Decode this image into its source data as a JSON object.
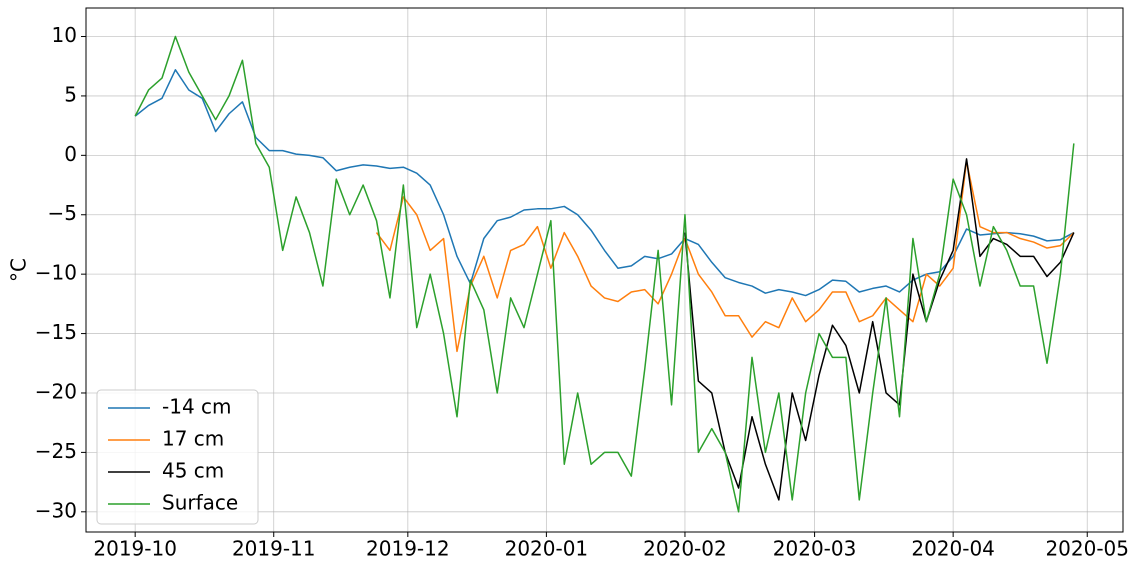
{
  "chart_data": {
    "type": "line",
    "ylabel": "°C",
    "x": [
      "2019-10-01",
      "2019-10-04",
      "2019-10-07",
      "2019-10-10",
      "2019-10-13",
      "2019-10-16",
      "2019-10-19",
      "2019-10-22",
      "2019-10-25",
      "2019-10-28",
      "2019-10-31",
      "2019-11-03",
      "2019-11-06",
      "2019-11-09",
      "2019-11-12",
      "2019-11-15",
      "2019-11-18",
      "2019-11-21",
      "2019-11-24",
      "2019-11-27",
      "2019-11-30",
      "2019-12-03",
      "2019-12-06",
      "2019-12-09",
      "2019-12-12",
      "2019-12-15",
      "2019-12-18",
      "2019-12-21",
      "2019-12-24",
      "2019-12-27",
      "2019-12-30",
      "2020-01-02",
      "2020-01-05",
      "2020-01-08",
      "2020-01-11",
      "2020-01-14",
      "2020-01-17",
      "2020-01-20",
      "2020-01-23",
      "2020-01-26",
      "2020-01-29",
      "2020-02-01",
      "2020-02-04",
      "2020-02-07",
      "2020-02-10",
      "2020-02-13",
      "2020-02-16",
      "2020-02-19",
      "2020-02-22",
      "2020-02-25",
      "2020-02-28",
      "2020-03-02",
      "2020-03-05",
      "2020-03-08",
      "2020-03-11",
      "2020-03-14",
      "2020-03-17",
      "2020-03-20",
      "2020-03-23",
      "2020-03-26",
      "2020-03-29",
      "2020-04-01",
      "2020-04-04",
      "2020-04-07",
      "2020-04-10",
      "2020-04-13",
      "2020-04-16",
      "2020-04-19",
      "2020-04-22",
      "2020-04-25",
      "2020-04-28"
    ],
    "series": [
      {
        "name": "-14 cm",
        "color": "#1f77b4",
        "values": [
          3.3,
          4.2,
          4.8,
          7.2,
          5.5,
          4.8,
          2.0,
          3.5,
          4.5,
          1.5,
          0.4,
          0.4,
          0.1,
          0,
          -0.2,
          -1.3,
          -1.0,
          -0.8,
          -0.9,
          -1.1,
          -1.0,
          -1.5,
          -2.5,
          -5,
          -8.5,
          -10.8,
          -7,
          -5.5,
          -5.2,
          -4.6,
          -4.5,
          -4.5,
          -4.3,
          -5,
          -6.3,
          -8,
          -9.5,
          -9.3,
          -8.5,
          -8.7,
          -8.3,
          -7,
          -7.5,
          -9,
          -10.3,
          -10.7,
          -11,
          -11.6,
          -11.3,
          -11.5,
          -11.8,
          -11.3,
          -10.5,
          -10.6,
          -11.5,
          -11.2,
          -11,
          -11.5,
          -10.5,
          -10,
          -9.8,
          -8.5,
          -6.2,
          -6.7,
          -6.6,
          -6.5,
          -6.6,
          -6.8,
          -7.2,
          -7.1,
          -6.5
        ]
      },
      {
        "name": "17 cm",
        "color": "#ff7f0e",
        "values": [
          null,
          null,
          null,
          null,
          null,
          null,
          null,
          null,
          null,
          null,
          null,
          null,
          null,
          null,
          null,
          null,
          null,
          null,
          -6.5,
          -8,
          -3.5,
          -5,
          -8,
          -7,
          -16.5,
          -11,
          -8.5,
          -12,
          -8,
          -7.5,
          -6,
          -9.5,
          -6.5,
          -8.5,
          -11,
          -12,
          -12.3,
          -11.5,
          -11.3,
          -12.5,
          -10,
          -7,
          -10,
          -11.5,
          -13.5,
          -13.5,
          -15.3,
          -14,
          -14.5,
          -12,
          -14,
          -13,
          -11.5,
          -11.5,
          -14,
          -13.5,
          -12,
          -13,
          -14,
          -10,
          -11,
          -9.5,
          -0.5,
          -6,
          -6.5,
          -6.5,
          -7,
          -7.3,
          -7.8,
          -7.6,
          -6.5
        ]
      },
      {
        "name": "45 cm",
        "color": "#000000",
        "values": [
          null,
          null,
          null,
          null,
          null,
          null,
          null,
          null,
          null,
          null,
          null,
          null,
          null,
          null,
          null,
          null,
          null,
          null,
          null,
          null,
          null,
          null,
          null,
          null,
          null,
          null,
          null,
          null,
          null,
          null,
          null,
          null,
          null,
          null,
          null,
          null,
          null,
          null,
          null,
          null,
          null,
          -6.5,
          -19,
          -20,
          -25,
          -28,
          -22,
          -26,
          -29,
          -20,
          -24,
          -18.5,
          -14.3,
          -16,
          -20,
          -14,
          -20,
          -21,
          -10,
          -14,
          -10.5,
          -8,
          -0.3,
          -8.5,
          -7,
          -7.5,
          -8.5,
          -8.5,
          -10.2,
          -9,
          -6.5
        ]
      },
      {
        "name": "Surface",
        "color": "#2ca02c",
        "values": [
          3.3,
          5.5,
          6.5,
          10,
          7,
          5,
          3,
          5,
          8,
          1,
          -1,
          -8,
          -3.5,
          -6.5,
          -11,
          -2,
          -5,
          -2.5,
          -5.5,
          -12,
          -2.5,
          -14.5,
          -10,
          -15,
          -22,
          -10.5,
          -13,
          -20,
          -12,
          -14.5,
          -10,
          -5.5,
          -26,
          -20,
          -26,
          -25,
          -25,
          -27,
          -18,
          -8,
          -21,
          -5,
          -25,
          -23,
          -25,
          -30,
          -17,
          -25,
          -20,
          -29,
          -20,
          -15,
          -17,
          -17,
          -29,
          -20,
          -12,
          -22,
          -7,
          -14,
          -10,
          -2,
          -5,
          -11,
          -6,
          -8,
          -11,
          -11,
          -17.5,
          -10,
          1
        ]
      }
    ],
    "xlim": [
      "2019-09-20",
      "2020-05-09"
    ],
    "xticks": [
      "2019-10",
      "2019-11",
      "2019-12",
      "2020-01",
      "2020-02",
      "2020-03",
      "2020-04",
      "2020-05"
    ],
    "ylim": [
      -31.7,
      12.4
    ],
    "yticks": [
      {
        "value": -30,
        "label": "−30"
      },
      {
        "value": -25,
        "label": "−25"
      },
      {
        "value": -20,
        "label": "−20"
      },
      {
        "value": -15,
        "label": "−15"
      },
      {
        "value": -10,
        "label": "−10"
      },
      {
        "value": -5,
        "label": "−5"
      },
      0,
      5,
      10
    ],
    "grid": true,
    "legend": "lower left"
  }
}
